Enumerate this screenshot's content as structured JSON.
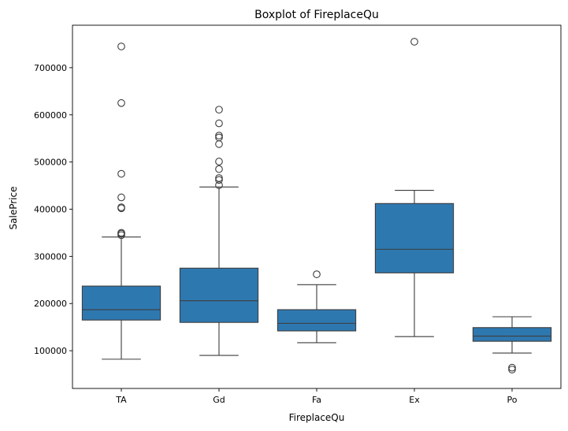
{
  "chart_data": {
    "type": "boxplot",
    "title": "Boxplot of FireplaceQu",
    "xlabel": "FireplaceQu",
    "ylabel": "SalePrice",
    "ylim": [
      20000,
      790000
    ],
    "yticks": [
      100000,
      200000,
      300000,
      400000,
      500000,
      600000,
      700000
    ],
    "ytick_labels": [
      "100000",
      "200000",
      "300000",
      "400000",
      "500000",
      "600000",
      "700000"
    ],
    "box_color": "#2e78b0",
    "line_color": "#3d3d3d",
    "grid": false,
    "categories": [
      "TA",
      "Gd",
      "Fa",
      "Ex",
      "Po"
    ],
    "boxes": [
      {
        "category": "TA",
        "whislo": 82000,
        "q1": 165000,
        "med": 187000,
        "q3": 237000,
        "whishi": 341000,
        "fliers": [
          345000,
          348000,
          350000,
          402000,
          404000,
          425000,
          475000,
          625000,
          745000
        ]
      },
      {
        "category": "Gd",
        "whislo": 90000,
        "q1": 160000,
        "med": 206000,
        "q3": 275000,
        "whishi": 447000,
        "fliers": [
          451000,
          462000,
          466000,
          485000,
          501000,
          538000,
          552000,
          556000,
          582000,
          611000
        ]
      },
      {
        "category": "Fa",
        "whislo": 117000,
        "q1": 142000,
        "med": 158000,
        "q3": 187000,
        "whishi": 240000,
        "fliers": [
          262000
        ]
      },
      {
        "category": "Ex",
        "whislo": 130000,
        "q1": 265000,
        "med": 315000,
        "q3": 412000,
        "whishi": 440000,
        "fliers": [
          755000
        ]
      },
      {
        "category": "Po",
        "whislo": 95000,
        "q1": 120000,
        "med": 131000,
        "q3": 149000,
        "whishi": 172000,
        "fliers": [
          60000,
          64000
        ]
      }
    ]
  }
}
